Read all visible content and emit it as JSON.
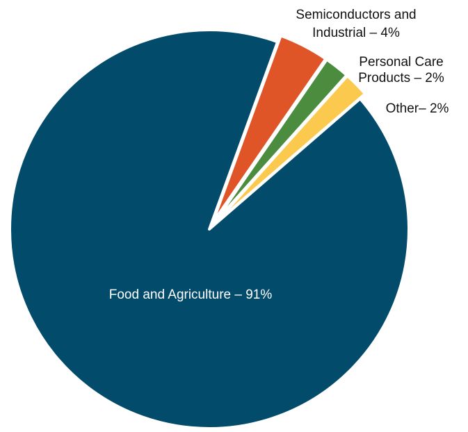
{
  "chart_data": {
    "type": "pie",
    "title": "",
    "start_angle_deg": 70,
    "direction": "clockwise",
    "slices": [
      {
        "label_lines": [
          "Semiconductors and",
          "Industrial – 4%"
        ],
        "value": 4,
        "color": "#e05527"
      },
      {
        "label_lines": [
          "Personal Care",
          "Products – 2%"
        ],
        "value": 2,
        "color": "#4b8c3e"
      },
      {
        "label_lines": [
          "Other– 2%"
        ],
        "value": 2,
        "color": "#fbc94e"
      },
      {
        "label_lines": [
          "Food and Agriculture – 91%"
        ],
        "value": 91,
        "color": "#024b6b",
        "label_inside": true
      }
    ],
    "label_color": "#111111",
    "inside_label_color": "#ffffff",
    "legend": "none"
  }
}
